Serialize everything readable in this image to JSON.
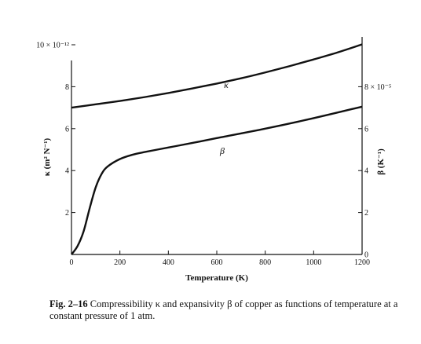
{
  "chart_data": {
    "type": "line",
    "title": "",
    "xlabel": "Temperature (K)",
    "ylabel_left": "κ (m² N⁻¹)",
    "ylabel_right": "β (K⁻¹)",
    "xlim": [
      0,
      1200
    ],
    "ylim_left": [
      0,
      10
    ],
    "ylim_right": [
      0,
      10
    ],
    "x_ticks": [
      "0",
      "200",
      "400",
      "600",
      "800",
      "1000",
      "1200"
    ],
    "x_tick_values": [
      0,
      200,
      400,
      600,
      800,
      1000,
      1200
    ],
    "y_left_ticks": [
      "2",
      "4",
      "6",
      "8",
      "10 × 10⁻¹²"
    ],
    "y_left_tick_values": [
      2,
      4,
      6,
      8,
      10
    ],
    "y_right_ticks": [
      "0",
      "2",
      "4",
      "6",
      "8 × 10⁻⁵"
    ],
    "y_right_tick_values": [
      0,
      2,
      4,
      6,
      8
    ],
    "grid": false,
    "series": [
      {
        "name": "κ",
        "axis": "left",
        "x": [
          0,
          100,
          200,
          300,
          400,
          500,
          600,
          700,
          800,
          900,
          1000,
          1100,
          1200
        ],
        "y": [
          7.0,
          7.16,
          7.32,
          7.5,
          7.7,
          7.92,
          8.15,
          8.4,
          8.68,
          8.98,
          9.3,
          9.64,
          10.02
        ]
      },
      {
        "name": "β",
        "axis": "right",
        "x": [
          0,
          25,
          50,
          75,
          100,
          125,
          150,
          200,
          250,
          300,
          400,
          500,
          600,
          800,
          1000,
          1200
        ],
        "y": [
          0,
          0.4,
          1.1,
          2.2,
          3.2,
          3.85,
          4.2,
          4.55,
          4.75,
          4.88,
          5.1,
          5.32,
          5.55,
          6.0,
          6.5,
          7.05
        ]
      }
    ]
  },
  "caption": {
    "number": "Fig. 2–16",
    "text": "Compressibility κ and expansivity β of copper as functions of temperature at a constant pressure of 1 atm."
  }
}
